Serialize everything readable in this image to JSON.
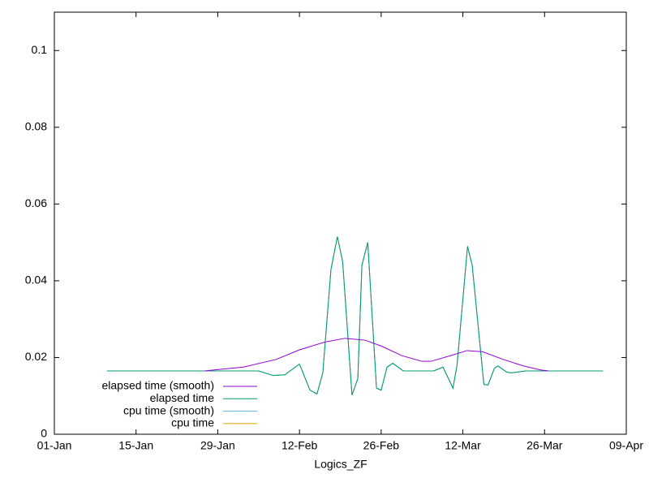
{
  "chart_data": {
    "type": "line",
    "xlabel": "Logics_ZF",
    "xlim": [
      0,
      98
    ],
    "xticks": [
      {
        "value": 0,
        "label": "01-Jan"
      },
      {
        "value": 14,
        "label": "15-Jan"
      },
      {
        "value": 28,
        "label": "29-Jan"
      },
      {
        "value": 42,
        "label": "12-Feb"
      },
      {
        "value": 56,
        "label": "26-Feb"
      },
      {
        "value": 70,
        "label": "12-Mar"
      },
      {
        "value": 84,
        "label": "26-Mar"
      },
      {
        "value": 98,
        "label": "09-Apr"
      }
    ],
    "ylim": [
      0,
      0.11
    ],
    "yticks": [
      0,
      0.02,
      0.04,
      0.06,
      0.08,
      0.1
    ],
    "legend": "bottom-left",
    "series": [
      {
        "name": "elapsed time (smooth)",
        "color": "#9400d3",
        "x": [
          25.7,
          32.4,
          38,
          42,
          46.3,
          49.8,
          53.3,
          56,
          59.5,
          63,
          64.5,
          67.9,
          70.7,
          73.4,
          76.9,
          80.4,
          83.2,
          84.7
        ],
        "values": [
          0.0165,
          0.0175,
          0.0195,
          0.022,
          0.024,
          0.025,
          0.0245,
          0.023,
          0.0205,
          0.019,
          0.019,
          0.0205,
          0.0218,
          0.0215,
          0.0195,
          0.0178,
          0.0168,
          0.0165
        ]
      },
      {
        "name": "elapsed time",
        "color": "#009e73",
        "x": [
          9,
          35,
          37.5,
          39.5,
          42,
          43.8,
          45,
          46,
          47.4,
          48.5,
          49.4,
          51,
          52,
          52.7,
          53.7,
          55.2,
          56,
          57,
          58,
          59.8,
          65,
          66.6,
          68.3,
          69,
          70.8,
          71.6,
          73.6,
          74.3,
          75.4,
          76,
          77.5,
          78.3,
          80.8,
          94
        ],
        "values": [
          0.0165,
          0.0165,
          0.0153,
          0.0155,
          0.0183,
          0.0115,
          0.0105,
          0.016,
          0.043,
          0.0515,
          0.045,
          0.0102,
          0.0145,
          0.044,
          0.05,
          0.012,
          0.0115,
          0.0175,
          0.0185,
          0.0165,
          0.0165,
          0.0175,
          0.012,
          0.018,
          0.049,
          0.044,
          0.013,
          0.0128,
          0.0172,
          0.0178,
          0.0162,
          0.016,
          0.0165,
          0.0165
        ]
      },
      {
        "name": "cpu time (smooth)",
        "color": "#56b4e9",
        "x": [
          9,
          35,
          37.5,
          39.5,
          42,
          43.8,
          45,
          46,
          47.4,
          48.5,
          49.4,
          51,
          52,
          52.7,
          53.7,
          55.2,
          56,
          57,
          58,
          59.8,
          65,
          66.6,
          68.3,
          69,
          70.8,
          71.6,
          73.6,
          74.3,
          75.4,
          76,
          77.5,
          78.3,
          80.8,
          94
        ],
        "values": [
          0.0165,
          0.0165,
          0.0153,
          0.0155,
          0.0183,
          0.0115,
          0.0105,
          0.016,
          0.043,
          0.0515,
          0.045,
          0.0102,
          0.0145,
          0.044,
          0.05,
          0.012,
          0.0115,
          0.0175,
          0.0185,
          0.0165,
          0.0165,
          0.0175,
          0.012,
          0.018,
          0.049,
          0.044,
          0.013,
          0.0128,
          0.0172,
          0.0178,
          0.0162,
          0.016,
          0.0165,
          0.0165
        ]
      },
      {
        "name": "cpu time",
        "color": "#e69f00",
        "x": [
          9,
          35,
          37.5,
          39.5,
          42,
          43.8,
          45,
          46,
          47.4,
          48.5,
          49.4,
          51,
          52,
          52.7,
          53.7,
          55.2,
          56,
          57,
          58,
          59.8,
          65,
          66.6,
          68.3,
          69,
          70.8,
          71.6,
          73.6,
          74.3,
          75.4,
          76,
          77.5,
          78.3,
          80.8,
          94
        ],
        "values": [
          0.0165,
          0.0165,
          0.0153,
          0.0155,
          0.0183,
          0.0115,
          0.0105,
          0.016,
          0.043,
          0.0515,
          0.045,
          0.0102,
          0.0145,
          0.044,
          0.05,
          0.012,
          0.0115,
          0.0175,
          0.0185,
          0.0165,
          0.0165,
          0.0175,
          0.012,
          0.018,
          0.049,
          0.044,
          0.013,
          0.0128,
          0.0172,
          0.0178,
          0.0162,
          0.016,
          0.0165,
          0.0165
        ]
      }
    ]
  }
}
